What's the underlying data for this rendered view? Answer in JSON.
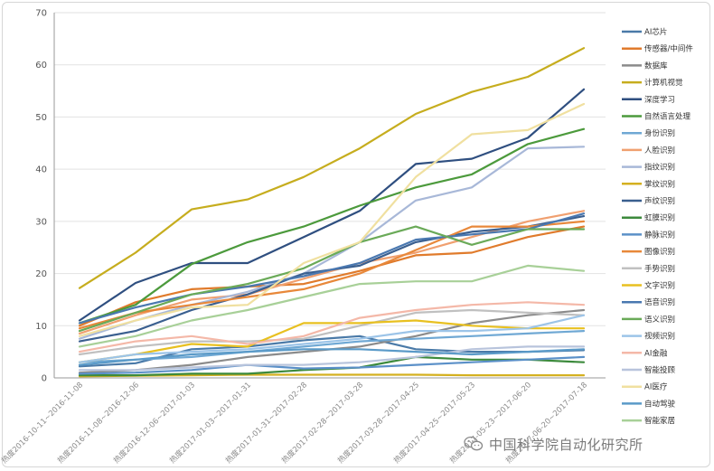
{
  "chart_data": {
    "type": "line",
    "title": "",
    "xlabel": "",
    "ylabel": "",
    "ylim": [
      0,
      70
    ],
    "yticks": [
      0,
      10,
      20,
      30,
      40,
      50,
      60,
      70
    ],
    "grid": "horizontal",
    "legend_position": "right",
    "categories": [
      "热度2016-10-11~2016-11-08",
      "热度2016-11-08~2016-12-06",
      "热度2016-12-06~2017-01-03",
      "热度2017-01-03~2017-01-31",
      "热度2017-01-31~2017-02-28",
      "热度2017-02-28~2017-03-28",
      "热度2017-03-28~2017-04-25",
      "热度2017-04-25~2017-05-23",
      "热度2017-05-23~2017-06-20",
      "热度2017-06-20~2017-07-18"
    ],
    "series": [
      {
        "name": "AI芯片",
        "color": "#4a7aa8",
        "values": [
          2.2,
          2.8,
          5.5,
          6.0,
          7.2,
          8.0,
          5.5,
          5.0,
          5.0,
          5.3
        ]
      },
      {
        "name": "传感器/中间件",
        "color": "#e07b2c",
        "values": [
          10.0,
          14.5,
          17.0,
          17.5,
          18.0,
          20.5,
          23.5,
          24.0,
          27.0,
          29.0
        ]
      },
      {
        "name": "数据库",
        "color": "#8b8b8b",
        "values": [
          1.0,
          1.5,
          2.5,
          4.0,
          5.0,
          6.0,
          8.0,
          10.5,
          12.0,
          13.0
        ]
      },
      {
        "name": "计算机视觉",
        "color": "#c6ad1e",
        "values": [
          17.2,
          24.0,
          32.3,
          34.2,
          38.5,
          44.0,
          50.6,
          54.8,
          57.7,
          63.2
        ]
      },
      {
        "name": "深度学习",
        "color": "#2f4f80",
        "values": [
          11.0,
          18.2,
          22.0,
          22.0,
          27.0,
          32.0,
          41.0,
          42.0,
          46.0,
          55.3
        ]
      },
      {
        "name": "自然语言处理",
        "color": "#4c9a3c",
        "values": [
          10.5,
          14.0,
          21.8,
          26.0,
          29.0,
          33.0,
          36.5,
          39.0,
          44.8,
          47.7
        ]
      },
      {
        "name": "身份识别",
        "color": "#6fa8d4",
        "values": [
          3.0,
          3.5,
          4.0,
          5.0,
          6.0,
          7.0,
          7.5,
          8.0,
          8.5,
          9.0
        ]
      },
      {
        "name": "人脸识别",
        "color": "#f0a070",
        "values": [
          8.5,
          12.0,
          15.0,
          16.0,
          19.0,
          22.0,
          24.0,
          27.0,
          30.0,
          32.0
        ]
      },
      {
        "name": "指纹识别",
        "color": "#a8b8d8",
        "values": [
          7.5,
          11.0,
          14.0,
          16.5,
          20.0,
          26.0,
          34.0,
          36.5,
          44.0,
          44.3
        ]
      },
      {
        "name": "掌纹识别",
        "color": "#d4b020",
        "values": [
          0.3,
          0.4,
          0.5,
          0.6,
          0.6,
          0.6,
          0.6,
          0.5,
          0.5,
          0.5
        ]
      },
      {
        "name": "声纹识别",
        "color": "#3a5f8f",
        "values": [
          7.0,
          9.0,
          13.0,
          16.0,
          20.0,
          21.5,
          26.0,
          28.0,
          29.0,
          31.0
        ]
      },
      {
        "name": "虹膜识别",
        "color": "#3c8a3c",
        "values": [
          0.5,
          0.5,
          0.8,
          0.8,
          1.5,
          2.0,
          4.0,
          3.5,
          3.5,
          3.0
        ]
      },
      {
        "name": "静脉识别",
        "color": "#5b90c8",
        "values": [
          0.8,
          1.0,
          1.5,
          2.5,
          1.8,
          2.0,
          2.5,
          3.0,
          3.5,
          4.0
        ]
      },
      {
        "name": "图像识别",
        "color": "#e8883a",
        "values": [
          9.5,
          12.5,
          14.0,
          15.5,
          17.0,
          20.0,
          24.5,
          29.0,
          29.0,
          30.0
        ]
      },
      {
        "name": "手势识别",
        "color": "#c0c0c0",
        "values": [
          4.5,
          6.0,
          7.0,
          7.0,
          7.5,
          10.0,
          12.5,
          13.0,
          12.5,
          12.0
        ]
      },
      {
        "name": "文字识别",
        "color": "#e8c020",
        "values": [
          3.0,
          4.5,
          6.5,
          6.0,
          10.5,
          10.5,
          11.0,
          10.0,
          9.5,
          9.5
        ]
      },
      {
        "name": "语音识别",
        "color": "#4a78b0",
        "values": [
          10.5,
          13.5,
          16.0,
          17.5,
          19.5,
          22.0,
          26.5,
          27.5,
          28.5,
          31.5
        ]
      },
      {
        "name": "语义识别",
        "color": "#6aaa58",
        "values": [
          9.0,
          12.5,
          16.0,
          18.0,
          21.0,
          26.0,
          29.0,
          25.5,
          28.5,
          28.5
        ]
      },
      {
        "name": "视频识别",
        "color": "#9cc4e8",
        "values": [
          3.0,
          4.5,
          5.0,
          5.5,
          6.5,
          7.5,
          9.0,
          9.0,
          9.5,
          12.0
        ]
      },
      {
        "name": "AI金融",
        "color": "#f4b8a8",
        "values": [
          5.0,
          7.0,
          8.0,
          6.5,
          8.0,
          11.5,
          13.0,
          14.0,
          14.5,
          14.0
        ]
      },
      {
        "name": "智能投顾",
        "color": "#b8c4dc",
        "values": [
          1.5,
          1.5,
          2.0,
          2.5,
          2.5,
          3.0,
          4.0,
          5.5,
          6.0,
          6.0
        ]
      },
      {
        "name": "AI医疗",
        "color": "#f0e0a0",
        "values": [
          8.0,
          11.0,
          13.5,
          14.0,
          22.0,
          26.0,
          38.5,
          46.7,
          47.5,
          52.5
        ]
      },
      {
        "name": "自动驾驶",
        "color": "#5a9ac8",
        "values": [
          2.5,
          3.5,
          4.5,
          5.0,
          5.5,
          5.5,
          5.0,
          4.5,
          5.0,
          5.5
        ]
      },
      {
        "name": "智能家居",
        "color": "#a8d098",
        "values": [
          6.0,
          8.0,
          11.0,
          13.0,
          15.5,
          18.0,
          18.5,
          18.5,
          21.5,
          20.5
        ]
      }
    ]
  },
  "watermark": {
    "text": "中国科学院自动化研究所",
    "icon": "wechat-icon"
  }
}
